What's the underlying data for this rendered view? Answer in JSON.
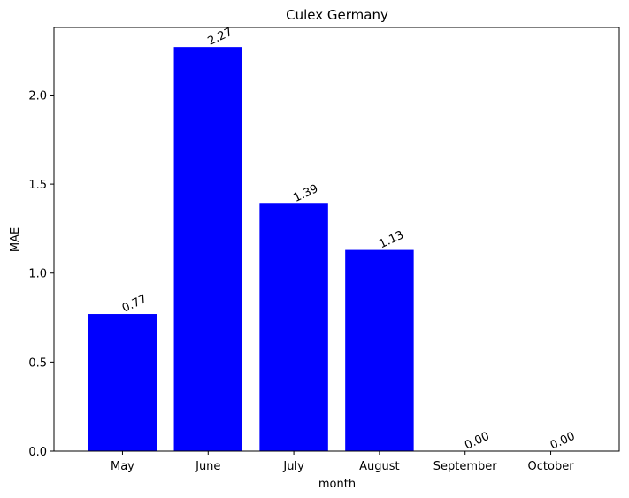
{
  "chart_data": {
    "type": "bar",
    "title": "Culex Germany",
    "xlabel": "month",
    "ylabel": "MAE",
    "categories": [
      "May",
      "June",
      "July",
      "August",
      "September",
      "October"
    ],
    "values": [
      0.77,
      2.27,
      1.39,
      1.13,
      0.0,
      0.0
    ],
    "value_labels": [
      "0.77",
      "2.27",
      "1.39",
      "1.13",
      "0.00",
      "0.00"
    ],
    "ylim": [
      0,
      2.38
    ],
    "yticks": [
      0.0,
      0.5,
      1.0,
      1.5,
      2.0
    ],
    "ytick_labels": [
      "0.0",
      "0.5",
      "1.0",
      "1.5",
      "2.0"
    ],
    "bar_color": "#0000ff",
    "grid": false,
    "legend": "none"
  }
}
